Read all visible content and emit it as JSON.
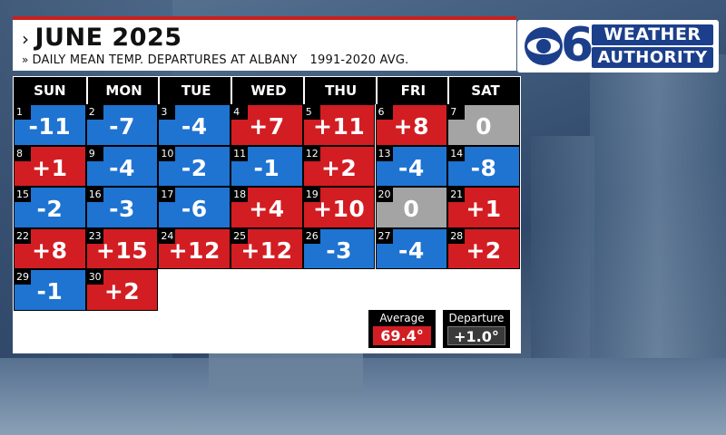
{
  "header": {
    "title": "JUNE 2025",
    "subtitle": "DAILY MEAN TEMP. DEPARTURES AT ALBANY",
    "normals_period": "1991-2020 AVG."
  },
  "logo": {
    "numeral": "6",
    "line1": "WEATHER",
    "line2": "AUTHORITY"
  },
  "calendar": {
    "weekdays": [
      "SUN",
      "MON",
      "TUE",
      "WED",
      "THU",
      "FRI",
      "SAT"
    ],
    "colors": {
      "above": "#d21d23",
      "below": "#1f73d1",
      "normal": "#a4a4a4"
    },
    "days": [
      {
        "day": "1",
        "departure": "-11",
        "status": "below"
      },
      {
        "day": "2",
        "departure": "-7",
        "status": "below"
      },
      {
        "day": "3",
        "departure": "-4",
        "status": "below"
      },
      {
        "day": "4",
        "departure": "+7",
        "status": "above"
      },
      {
        "day": "5",
        "departure": "+11",
        "status": "above"
      },
      {
        "day": "6",
        "departure": "+8",
        "status": "above"
      },
      {
        "day": "7",
        "departure": "0",
        "status": "normal"
      },
      {
        "day": "8",
        "departure": "+1",
        "status": "above"
      },
      {
        "day": "9",
        "departure": "-4",
        "status": "below"
      },
      {
        "day": "10",
        "departure": "-2",
        "status": "below"
      },
      {
        "day": "11",
        "departure": "-1",
        "status": "below"
      },
      {
        "day": "12",
        "departure": "+2",
        "status": "above"
      },
      {
        "day": "13",
        "departure": "-4",
        "status": "below"
      },
      {
        "day": "14",
        "departure": "-8",
        "status": "below"
      },
      {
        "day": "15",
        "departure": "-2",
        "status": "below"
      },
      {
        "day": "16",
        "departure": "-3",
        "status": "below"
      },
      {
        "day": "17",
        "departure": "-6",
        "status": "below"
      },
      {
        "day": "18",
        "departure": "+4",
        "status": "above"
      },
      {
        "day": "19",
        "departure": "+10",
        "status": "above"
      },
      {
        "day": "20",
        "departure": "0",
        "status": "normal"
      },
      {
        "day": "21",
        "departure": "+1",
        "status": "above"
      },
      {
        "day": "22",
        "departure": "+8",
        "status": "above"
      },
      {
        "day": "23",
        "departure": "+15",
        "status": "above"
      },
      {
        "day": "24",
        "departure": "+12",
        "status": "above"
      },
      {
        "day": "25",
        "departure": "+12",
        "status": "above"
      },
      {
        "day": "26",
        "departure": "-3",
        "status": "below"
      },
      {
        "day": "27",
        "departure": "-4",
        "status": "below"
      },
      {
        "day": "28",
        "departure": "+2",
        "status": "above"
      },
      {
        "day": "29",
        "departure": "-1",
        "status": "below"
      },
      {
        "day": "30",
        "departure": "+2",
        "status": "above"
      }
    ]
  },
  "summary": {
    "average_label": "Average",
    "average_value": "69.4°",
    "departure_label": "Departure",
    "departure_value": "+1.0°"
  }
}
